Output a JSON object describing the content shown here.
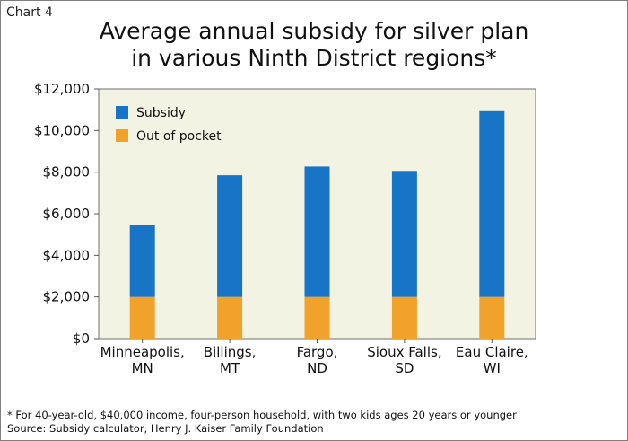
{
  "header": {
    "chart_label": "Chart 4",
    "title_line1": "Average annual subsidy for silver plan",
    "title_line2": "in various Ninth District regions*"
  },
  "footnotes": {
    "line1": "* For 40-year-old, $40,000 income, four-person household, with two kids ages 20 years or younger",
    "line2": "Source: Subsidy calculator, Henry J. Kaiser Family Foundation"
  },
  "colors": {
    "subsidy": "#1874c7",
    "out_of_pocket": "#f0a22a",
    "plot_background": "#f3f3e4"
  },
  "chart_data": {
    "type": "bar",
    "stacked": true,
    "categories": [
      [
        "Minneapolis,",
        "MN"
      ],
      [
        "Billings,",
        "MT"
      ],
      [
        "Fargo,",
        "ND"
      ],
      [
        "Sioux Falls,",
        "SD"
      ],
      [
        "Eau Claire,",
        "WI"
      ]
    ],
    "series": [
      {
        "name": "Out of pocket",
        "values": [
          2000,
          2000,
          2000,
          2000,
          2000
        ]
      },
      {
        "name": "Subsidy",
        "values": [
          3450,
          5850,
          6270,
          6060,
          8930
        ]
      }
    ],
    "ylim": [
      0,
      12000
    ],
    "yticks": [
      "$0",
      "$2,000",
      "$4,000",
      "$6,000",
      "$8,000",
      "$10,000",
      "$12,000"
    ],
    "legend_position": "top-left",
    "legend": [
      "Subsidy",
      "Out of pocket"
    ],
    "grid": false
  }
}
